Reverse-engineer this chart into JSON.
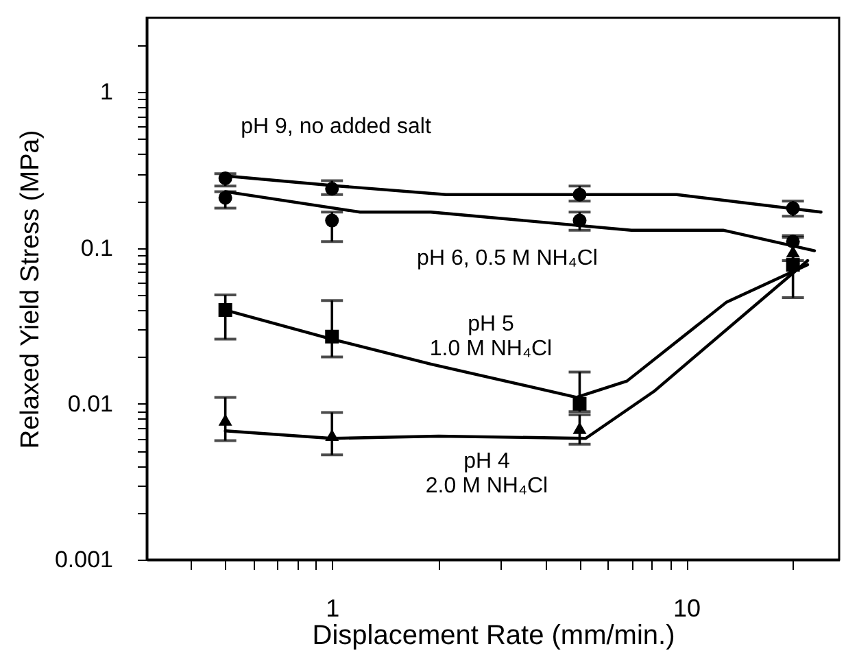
{
  "chart_data": {
    "type": "scatter",
    "xlabel": "Displacement Rate (mm/min.)",
    "ylabel": "Relaxed Yield Stress (MPa)",
    "log": "xy",
    "grid": false,
    "xlim": [
      0.3,
      27
    ],
    "ylim": [
      0.001,
      3
    ],
    "xticks": [
      {
        "value": 0.4,
        "label": null
      },
      {
        "value": 0.5,
        "label": null
      },
      {
        "value": 0.6,
        "label": null
      },
      {
        "value": 0.7,
        "label": null
      },
      {
        "value": 0.8,
        "label": null
      },
      {
        "value": 0.9,
        "label": null
      },
      1,
      {
        "value": 2,
        "label": null
      },
      {
        "value": 3,
        "label": null
      },
      {
        "value": 4,
        "label": null
      },
      {
        "value": 5,
        "label": null
      },
      {
        "value": 6,
        "label": null
      },
      {
        "value": 7,
        "label": null
      },
      {
        "value": 8,
        "label": null
      },
      {
        "value": 9,
        "label": null
      },
      10,
      {
        "value": 20,
        "label": null
      }
    ],
    "yticks": [
      0.001,
      {
        "value": 0.002,
        "label": null
      },
      {
        "value": 0.003,
        "label": null
      },
      {
        "value": 0.004,
        "label": null
      },
      {
        "value": 0.005,
        "label": null
      },
      {
        "value": 0.006,
        "label": null
      },
      {
        "value": 0.007,
        "label": null
      },
      {
        "value": 0.008,
        "label": null
      },
      {
        "value": 0.009,
        "label": null
      },
      0.01,
      {
        "value": 0.02,
        "label": null
      },
      {
        "value": 0.03,
        "label": null
      },
      {
        "value": 0.04,
        "label": null
      },
      {
        "value": 0.05,
        "label": null
      },
      {
        "value": 0.06,
        "label": null
      },
      {
        "value": 0.07,
        "label": null
      },
      {
        "value": 0.08,
        "label": null
      },
      {
        "value": 0.09,
        "label": null
      },
      0.1,
      {
        "value": 0.2,
        "label": null
      },
      {
        "value": 0.3,
        "label": null
      },
      {
        "value": 0.4,
        "label": null
      },
      {
        "value": 0.5,
        "label": null
      },
      {
        "value": 0.6,
        "label": null
      },
      {
        "value": 0.7,
        "label": null
      },
      {
        "value": 0.8,
        "label": null
      },
      {
        "value": 0.9,
        "label": null
      },
      1,
      {
        "value": 2,
        "label": null
      }
    ],
    "x": [
      0.5,
      1,
      5,
      20
    ],
    "series": [
      {
        "type": "line",
        "color": "#000000",
        "marker": "none",
        "x": [
          0.5,
          1.04,
          2.1,
          9.4,
          24
        ],
        "values": [
          0.29,
          0.25,
          0.22,
          0.22,
          0.17
        ]
      },
      {
        "type": "line",
        "color": "#000000",
        "marker": "none",
        "x": [
          0.5,
          1.2,
          1.9,
          7,
          12.7,
          23
        ],
        "values": [
          0.23,
          0.17,
          0.17,
          0.13,
          0.13,
          0.096
        ]
      },
      {
        "type": "line",
        "color": "#000000",
        "marker": "none",
        "x": [
          0.5,
          1,
          1.9,
          4.9,
          6.8,
          13,
          22
        ],
        "values": [
          0.04,
          0.026,
          0.018,
          0.011,
          0.014,
          0.045,
          0.078
        ]
      },
      {
        "type": "line",
        "color": "#000000",
        "marker": "none",
        "x": [
          0.5,
          1,
          2,
          5.2,
          8.1,
          22
        ],
        "values": [
          0.0067,
          0.006,
          0.0062,
          0.006,
          0.012,
          0.083
        ]
      },
      {
        "type": "scatter",
        "color": "#000000",
        "marker": "circle",
        "values": [
          0.28,
          0.24,
          0.22,
          0.18
        ],
        "errors": [
          [
            0.25,
            0.3
          ],
          [
            0.22,
            0.27
          ],
          [
            0.2,
            0.25
          ],
          [
            0.16,
            0.2
          ]
        ]
      },
      {
        "type": "scatter",
        "color": "#000000",
        "marker": "circle",
        "values": [
          0.21,
          0.15,
          0.15,
          0.11
        ],
        "errors": [
          [
            0.18,
            0.23
          ],
          [
            0.11,
            0.17
          ],
          [
            0.13,
            0.17
          ],
          [
            0.083,
            0.12
          ]
        ]
      },
      {
        "type": "scatter",
        "color": "#000000",
        "marker": "square",
        "values": [
          0.04,
          0.027,
          0.01,
          0.078
        ],
        "errors": [
          [
            0.026,
            0.05
          ],
          [
            0.02,
            0.046
          ],
          [
            0.0089,
            0.016
          ],
          [
            0.048,
            0.117
          ]
        ]
      },
      {
        "type": "scatter",
        "color": "#000000",
        "marker": "triangle",
        "values": [
          0.0079,
          0.0063,
          0.007,
          0.095
        ],
        "errors": [
          [
            0.0058,
            0.011
          ],
          [
            0.0047,
            0.0088
          ],
          [
            0.0055,
            0.0085
          ],
          null
        ]
      }
    ],
    "annotations": [
      "pH 9, no added salt",
      "pH 6, 0.5 M NH₄Cl",
      "pH 5\n1.0 M NH₄Cl",
      "pH 4\n2.0 M NH₄Cl"
    ]
  }
}
